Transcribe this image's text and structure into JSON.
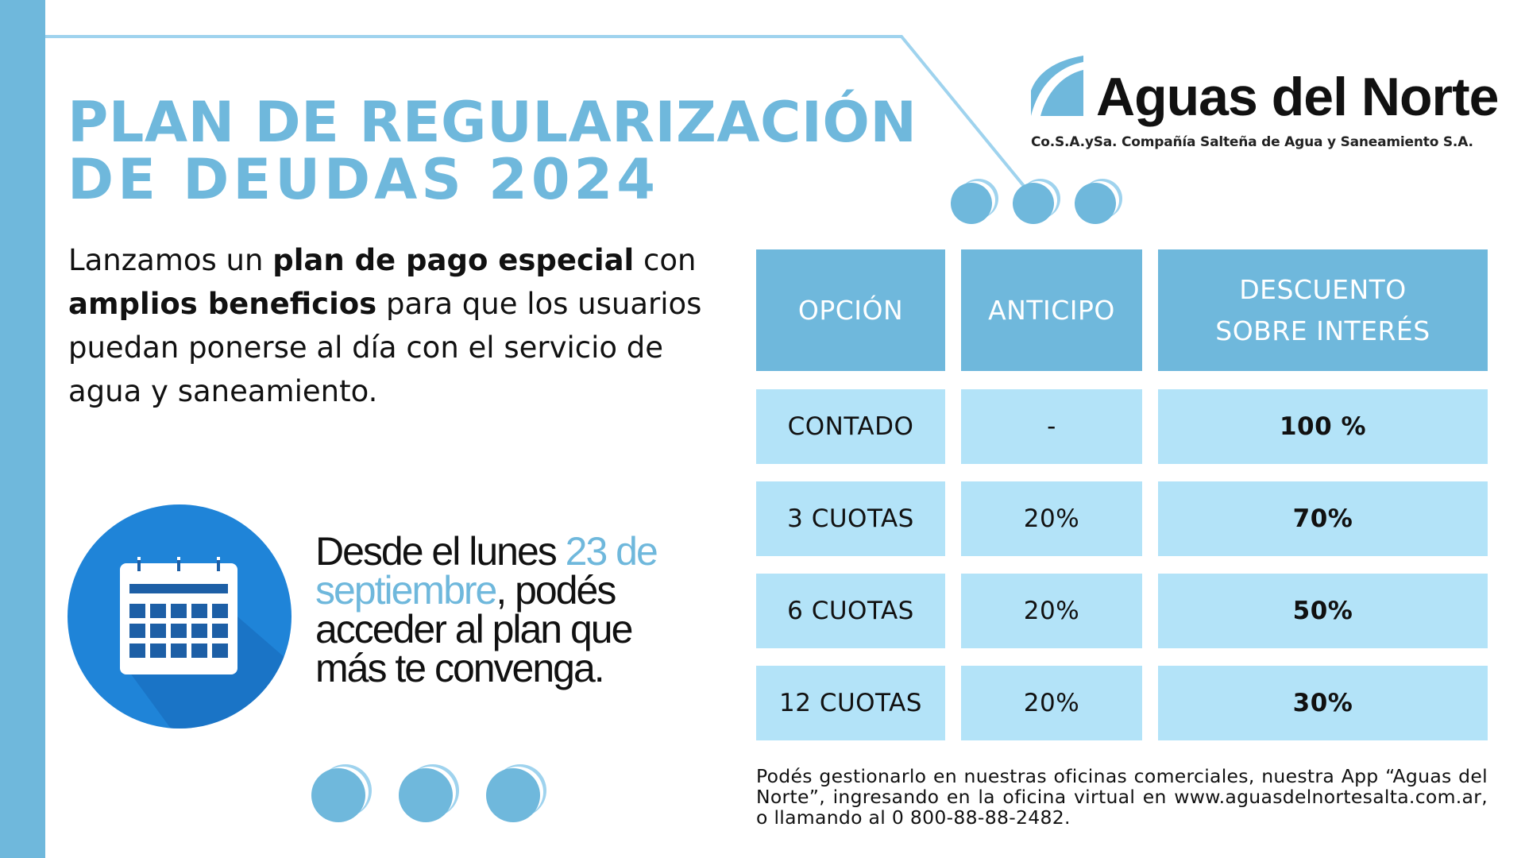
{
  "title": {
    "line1": "PLAN DE REGULARIZACIÓN",
    "line2": "DE DEUDAS 2024"
  },
  "intro": {
    "part1": "Lanzamos un ",
    "bold1": "plan de pago especial",
    "part2": " con ",
    "bold2": "amplios beneficios",
    "part3": " para que los usuarios puedan ponerse al día con el servicio de agua y saneamiento."
  },
  "promo": {
    "part1": "Desde el lunes ",
    "highlight": "23 de septiembre",
    "part2": ", podés acceder al plan que más te convenga."
  },
  "brand": {
    "name": "Aguas del Norte",
    "subtitle": "Co.S.A.ySa. Compañía Salteña de Agua y Saneamiento S.A."
  },
  "table": {
    "headers": [
      "OPCIÓN",
      "ANTICIPO",
      "DESCUENTO\nSOBRE INTERÉS"
    ],
    "rows": [
      {
        "opcion": "CONTADO",
        "anticipo": "-",
        "descuento": "100 %"
      },
      {
        "opcion": "3 CUOTAS",
        "anticipo": "20%",
        "descuento": "70%"
      },
      {
        "opcion": "6 CUOTAS",
        "anticipo": "20%",
        "descuento": "50%"
      },
      {
        "opcion": "12 CUOTAS",
        "anticipo": "20%",
        "descuento": "30%"
      }
    ]
  },
  "footer": "Podés gestionarlo en nuestras oficinas comerciales, nuestra App “Aguas del Norte”, ingresando en la oficina virtual en www.aguasdelnortesalta.com.ar, o llamando al 0 800-88-88-2482.",
  "icons": {
    "calendar": "calendar-icon",
    "logo": "aguas-del-norte-logo-icon"
  },
  "colors": {
    "accent": "#6fb8dc",
    "table_body": "#b3e3f8",
    "calendar_circle": "#1f84d8"
  }
}
